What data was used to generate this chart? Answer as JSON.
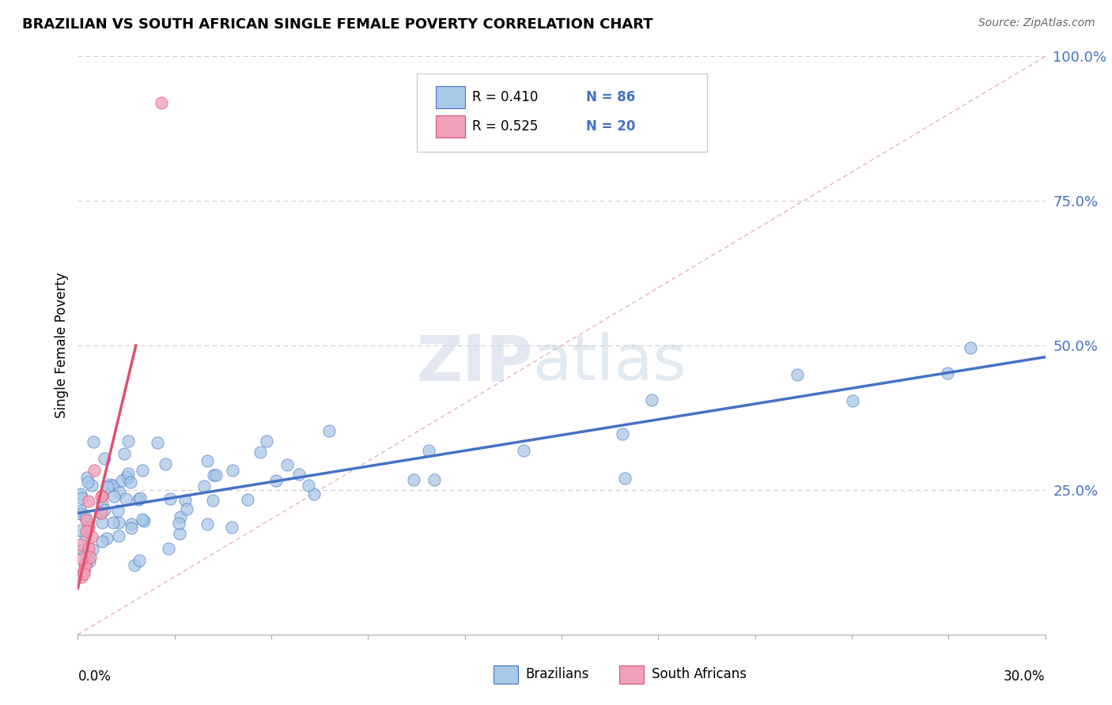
{
  "title": "BRAZILIAN VS SOUTH AFRICAN SINGLE FEMALE POVERTY CORRELATION CHART",
  "source": "Source: ZipAtlas.com",
  "ylabel": "Single Female Poverty",
  "color_blue": "#A8C8E8",
  "color_pink": "#F0A0B8",
  "color_blue_line": "#4472C4",
  "color_pink_line": "#E05070",
  "color_diag": "#E8B0C0",
  "watermark_zip": "ZIP",
  "watermark_atlas": "atlas",
  "xmin": 0.0,
  "xmax": 0.3,
  "ymin": 0.0,
  "ymax": 1.0,
  "blue_trend_x": [
    0.0,
    0.3
  ],
  "blue_trend_y": [
    0.21,
    0.48
  ],
  "pink_trend_x": [
    0.0,
    0.018
  ],
  "pink_trend_y": [
    0.08,
    0.5
  ],
  "r_blue": "0.410",
  "n_blue": "86",
  "r_pink": "0.525",
  "n_pink": "20"
}
